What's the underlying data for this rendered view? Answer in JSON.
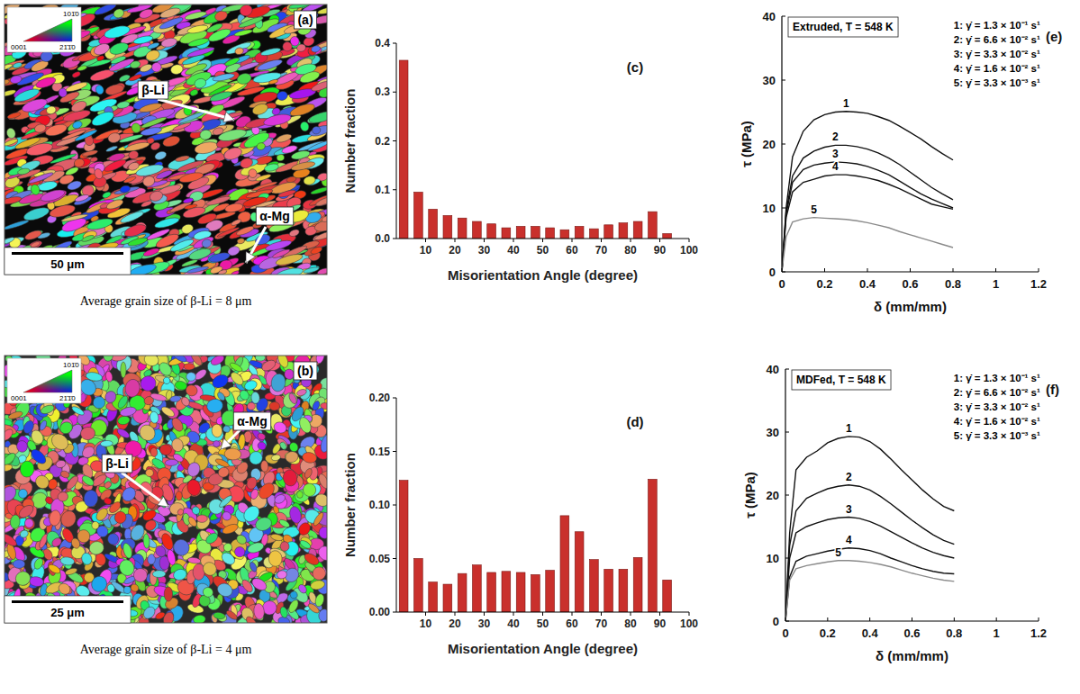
{
  "chart_data": [
    {
      "type": "histogram",
      "panel_label": "(c)",
      "xlabel": "Misorientation Angle (degree)",
      "ylabel": "Number fraction",
      "color": "#c9302c",
      "bins": [
        0,
        5,
        10,
        15,
        20,
        25,
        30,
        35,
        40,
        45,
        50,
        55,
        60,
        65,
        70,
        75,
        80,
        85,
        90,
        95
      ],
      "counts": [
        0.365,
        0.095,
        0.06,
        0.047,
        0.042,
        0.035,
        0.03,
        0.022,
        0.025,
        0.025,
        0.022,
        0.018,
        0.025,
        0.02,
        0.028,
        0.032,
        0.035,
        0.055,
        0.01
      ],
      "xlim": [
        0,
        100
      ],
      "xticks": [
        10,
        20,
        30,
        40,
        50,
        60,
        70,
        80,
        90,
        100
      ],
      "ylim": [
        0,
        0.4
      ],
      "yticks": [
        {
          "value": 0,
          "label": "0.0"
        },
        0.1,
        0.2,
        0.3,
        0.4
      ]
    },
    {
      "type": "histogram",
      "panel_label": "(d)",
      "xlabel": "Misorientation Angle (degree)",
      "ylabel": "Number fraction",
      "color": "#c9302c",
      "bins": [
        0,
        5,
        10,
        15,
        20,
        25,
        30,
        35,
        40,
        45,
        50,
        55,
        60,
        65,
        70,
        75,
        80,
        85,
        90,
        95
      ],
      "counts": [
        0.123,
        0.05,
        0.028,
        0.026,
        0.036,
        0.044,
        0.037,
        0.038,
        0.037,
        0.035,
        0.039,
        0.09,
        0.075,
        0.049,
        0.04,
        0.04,
        0.051,
        0.124,
        0.03
      ],
      "xlim": [
        0,
        100
      ],
      "xticks": [
        10,
        20,
        30,
        40,
        50,
        60,
        70,
        80,
        90,
        100
      ],
      "ylim": [
        0,
        0.2
      ],
      "yticks": [
        {
          "value": 0,
          "label": "0.00"
        },
        {
          "value": 0.05,
          "label": "0.05"
        },
        {
          "value": 0.1,
          "label": "0.10"
        },
        {
          "value": 0.15,
          "label": "0.15"
        },
        {
          "value": 0.2,
          "label": "0.20"
        }
      ]
    },
    {
      "type": "line",
      "panel_label": "(e)",
      "title": "Extruded, T = 548 K",
      "xlabel": "δ (mm/mm)",
      "ylabel": "τ (MPa)",
      "legend": "upper right",
      "data_labels": true,
      "x": [
        0,
        0.02,
        0.05,
        0.1,
        0.15,
        0.2,
        0.25,
        0.3,
        0.35,
        0.4,
        0.45,
        0.5,
        0.55,
        0.6,
        0.65,
        0.7,
        0.75,
        0.8
      ],
      "series": [
        {
          "name": "1: γ̇ = 1.3 × 10⁻¹ s¹",
          "label": "1",
          "color": "#111111",
          "values": [
            0,
            10,
            18,
            22,
            23.8,
            24.6,
            25,
            25.1,
            25,
            24.8,
            24.3,
            23.7,
            22.8,
            21.8,
            20.8,
            19.6,
            18.5,
            17.5
          ]
        },
        {
          "name": "2: γ̇ = 6.6 × 10⁻² s¹",
          "label": "2",
          "color": "#111111",
          "values": [
            0,
            9.5,
            15,
            17.8,
            18.9,
            19.5,
            19.8,
            19.8,
            19.6,
            19.2,
            18.6,
            17.8,
            16.8,
            15.6,
            14.4,
            13.2,
            12.2,
            11.3
          ]
        },
        {
          "name": "3: γ̇ = 3.3 × 10⁻² s¹",
          "label": "3",
          "color": "#111111",
          "values": [
            0,
            9,
            14,
            16,
            16.7,
            17,
            17.2,
            17.1,
            16.9,
            16.5,
            15.9,
            15.2,
            14.2,
            13.2,
            12.2,
            11.4,
            10.7,
            10
          ]
        },
        {
          "name": "4: γ̇ = 1.6 × 10⁻² s¹",
          "label": "4",
          "color": "#111111",
          "values": [
            0,
            8.5,
            12.5,
            14,
            14.5,
            15,
            15.2,
            15.2,
            15,
            14.7,
            14.3,
            13.7,
            13,
            12.2,
            11.4,
            10.6,
            10.2,
            9.8
          ]
        },
        {
          "name": "5: γ̇ = 3.3 × 10⁻³ s¹",
          "label": "5",
          "color": "#8a8a8a",
          "values": [
            0,
            5.5,
            7.8,
            8.3,
            8.5,
            8.4,
            8.3,
            8.2,
            8,
            7.7,
            7.3,
            6.9,
            6.3,
            5.8,
            5.3,
            4.8,
            4.3,
            3.8
          ]
        }
      ],
      "xlim": [
        0,
        1.2
      ],
      "xticks": [
        0,
        0.2,
        0.4,
        0.6,
        0.8,
        1,
        1.2
      ],
      "ylim": [
        0,
        40
      ],
      "yticks": [
        0,
        10,
        20,
        30,
        40
      ]
    },
    {
      "type": "line",
      "panel_label": "(f)",
      "title": "MDFed, T = 548 K",
      "xlabel": "δ (mm/mm)",
      "ylabel": "τ (MPa)",
      "legend": "upper right",
      "data_labels": true,
      "x": [
        0,
        0.02,
        0.05,
        0.1,
        0.15,
        0.2,
        0.25,
        0.3,
        0.35,
        0.4,
        0.45,
        0.5,
        0.55,
        0.6,
        0.65,
        0.7,
        0.75,
        0.8
      ],
      "series": [
        {
          "name": "1: γ̇ = 1.3 × 10⁻¹ s¹",
          "label": "1",
          "color": "#111111",
          "values": [
            0,
            14,
            24,
            26,
            27,
            28.3,
            29,
            29.3,
            29.2,
            28.5,
            27.3,
            25.7,
            24,
            22.4,
            20.8,
            19.4,
            18.2,
            17.5
          ]
        },
        {
          "name": "2: γ̇ = 6.6 × 10⁻² s¹",
          "label": "2",
          "color": "#111111",
          "values": [
            0,
            12,
            17.5,
            19.5,
            20.3,
            21,
            21.4,
            21.6,
            21.4,
            20.8,
            19.8,
            18.6,
            17.3,
            16,
            14.8,
            13.7,
            12.8,
            12.2
          ]
        },
        {
          "name": "3: γ̇ = 3.3 × 10⁻² s¹",
          "label": "3",
          "color": "#111111",
          "values": [
            0,
            10,
            14,
            15,
            15.6,
            16.1,
            16.4,
            16.5,
            16.3,
            15.8,
            15.1,
            14.2,
            13.3,
            12.4,
            11.6,
            10.9,
            10.4,
            10
          ]
        },
        {
          "name": "4: γ̇ = 1.6 × 10⁻² s¹",
          "label": "4",
          "color": "#111111",
          "values": [
            0,
            7,
            9.5,
            10.3,
            10.7,
            11.1,
            11.4,
            11.6,
            11.5,
            11.2,
            10.7,
            10,
            9.4,
            8.8,
            8.3,
            7.9,
            7.6,
            7.5
          ]
        },
        {
          "name": "5: γ̇ = 3.3 × 10⁻³ s¹",
          "label": "5",
          "color": "#8a8a8a",
          "values": [
            0,
            6.5,
            8.3,
            8.8,
            9.1,
            9.4,
            9.6,
            9.6,
            9.5,
            9.3,
            9,
            8.6,
            8.1,
            7.6,
            7.2,
            6.8,
            6.5,
            6.3
          ]
        }
      ],
      "xlim": [
        0,
        1.2
      ],
      "xticks": [
        0,
        0.2,
        0.4,
        0.6,
        0.8,
        1,
        1.2
      ],
      "ylim": [
        0,
        40
      ],
      "yticks": [
        0,
        10,
        20,
        30,
        40
      ]
    }
  ],
  "micrographs": [
    {
      "panel_label": "(a)",
      "phases": [
        "β-Li",
        "α-Mg"
      ],
      "scale_bar": "50 μm",
      "caption": "Average grain size of β-Li = 8 μm",
      "ipf_labels": [
        "101̄0",
        "0001",
        "21̄1̄0"
      ]
    },
    {
      "panel_label": "(b)",
      "phases": [
        "β-Li",
        "α-Mg"
      ],
      "scale_bar": "25 μm",
      "caption": "Average grain size of β-Li = 4 μm",
      "ipf_labels": [
        "101̄0",
        "0001",
        "21̄1̄0"
      ]
    }
  ]
}
